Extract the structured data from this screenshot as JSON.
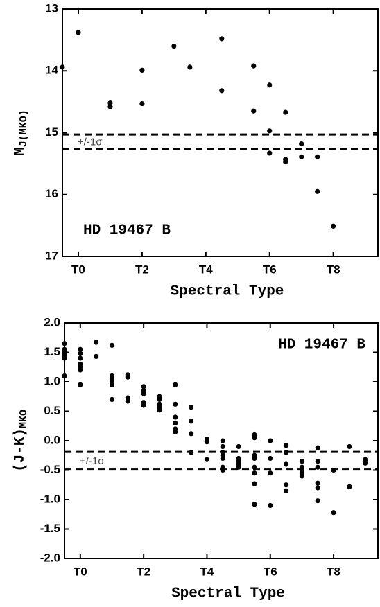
{
  "chart_data": [
    {
      "type": "scatter",
      "xlabel": "Spectral Type",
      "ylabel": "M",
      "ylabel_sub": "J(MKO)",
      "annotation": "HD 19467 B",
      "band_label": "+/-1σ",
      "invert_y": true,
      "xlim": [
        -0.5,
        9.4
      ],
      "ylim": [
        13,
        17
      ],
      "xticks": [
        {
          "value": 0,
          "label": "T0"
        },
        {
          "value": 2,
          "label": "T2"
        },
        {
          "value": 4,
          "label": "T4"
        },
        {
          "value": 6,
          "label": "T6"
        },
        {
          "value": 8,
          "label": "T8"
        }
      ],
      "yticks": [
        13,
        14,
        15,
        16,
        17
      ],
      "reference_lines": [
        15.03,
        15.26
      ],
      "color": "#000000",
      "x": [
        -0.5,
        0,
        1,
        1,
        2,
        2,
        3,
        3.5,
        4.5,
        4.5,
        5.5,
        5.5,
        6,
        6,
        6,
        6.5,
        6.5,
        6.5,
        7,
        7,
        7.5,
        7.5,
        8
      ],
      "values": [
        13.94,
        13.38,
        14.52,
        14.58,
        13.99,
        14.53,
        13.6,
        13.94,
        13.48,
        14.32,
        13.92,
        14.65,
        14.23,
        14.97,
        15.33,
        14.67,
        15.43,
        15.47,
        15.18,
        15.39,
        15.39,
        15.95,
        16.51
      ]
    },
    {
      "type": "scatter",
      "xlabel": "Spectral Type",
      "ylabel": "(J-K)",
      "ylabel_sub": "MKO",
      "annotation": "HD 19467 B",
      "band_label": "+/-1σ",
      "invert_y": false,
      "xlim": [
        -0.5,
        9.4
      ],
      "ylim": [
        -2,
        2
      ],
      "xticks": [
        {
          "value": 0,
          "label": "T0"
        },
        {
          "value": 2,
          "label": "T2"
        },
        {
          "value": 4,
          "label": "T4"
        },
        {
          "value": 6,
          "label": "T6"
        },
        {
          "value": 8,
          "label": "T8"
        }
      ],
      "yticks": [
        {
          "value": 2,
          "label": "2.0"
        },
        {
          "value": 1.5,
          "label": "1.5"
        },
        {
          "value": 1,
          "label": "1.0"
        },
        {
          "value": 0.5,
          "label": "0.5"
        },
        {
          "value": 0,
          "label": "0.0"
        },
        {
          "value": -0.5,
          "label": "-0.5"
        },
        {
          "value": -1,
          "label": "-1.0"
        },
        {
          "value": -1.5,
          "label": "-1.5"
        },
        {
          "value": -2,
          "label": "-2.0"
        }
      ],
      "reference_lines": [
        -0.19,
        -0.49
      ],
      "color": "#000000",
      "x": [
        -0.5,
        -0.5,
        -0.5,
        -0.5,
        -0.5,
        -0.5,
        0,
        0,
        0,
        0,
        0,
        0,
        0,
        0.5,
        0.5,
        1,
        1,
        1,
        1,
        1,
        1,
        1.5,
        1.5,
        1.5,
        1.5,
        2,
        2,
        2,
        2,
        2,
        2.5,
        2.5,
        2.5,
        2.5,
        2.5,
        3,
        3,
        3,
        3,
        3,
        3,
        3.5,
        3.5,
        3.5,
        3.5,
        4,
        4,
        4,
        4.5,
        4.5,
        4.5,
        4.5,
        4.5,
        4.5,
        4.5,
        5,
        5,
        5,
        5,
        5,
        5.5,
        5.5,
        5.5,
        5.5,
        5.5,
        5.5,
        5.5,
        5.5,
        6,
        6,
        6,
        6,
        6.5,
        6.5,
        6.5,
        6.5,
        6.5,
        7,
        7,
        7,
        7,
        7,
        7.5,
        7.5,
        7.5,
        7.5,
        7.5,
        7.5,
        8,
        8,
        8.5,
        8.5,
        9,
        9
      ],
      "values": [
        1.65,
        1.55,
        1.5,
        1.45,
        1.4,
        1.1,
        1.55,
        1.48,
        1.4,
        1.3,
        1.25,
        1.2,
        0.95,
        1.67,
        1.43,
        1.62,
        1.1,
        1.05,
        1.0,
        0.95,
        0.7,
        1.12,
        1.08,
        0.73,
        0.67,
        0.92,
        0.85,
        0.8,
        0.65,
        0.6,
        0.75,
        0.7,
        0.62,
        0.57,
        0.52,
        0.95,
        0.62,
        0.4,
        0.3,
        0.2,
        0.15,
        0.57,
        0.33,
        0.12,
        -0.2,
        0.03,
        -0.02,
        -0.32,
        0.0,
        -0.1,
        -0.2,
        -0.25,
        -0.3,
        -0.45,
        -0.5,
        -0.1,
        -0.3,
        -0.35,
        -0.4,
        -0.45,
        0.1,
        0.05,
        -0.25,
        -0.3,
        -0.45,
        -0.55,
        -0.73,
        -1.08,
        0.0,
        -0.3,
        -0.55,
        -1.1,
        -0.08,
        -0.2,
        -0.4,
        -0.75,
        -0.85,
        -0.35,
        -0.45,
        -0.5,
        -0.55,
        -0.6,
        -0.12,
        -0.35,
        -0.45,
        -0.72,
        -0.8,
        -1.02,
        -0.5,
        -1.22,
        -0.1,
        -0.78,
        -0.32,
        -0.38
      ]
    }
  ]
}
